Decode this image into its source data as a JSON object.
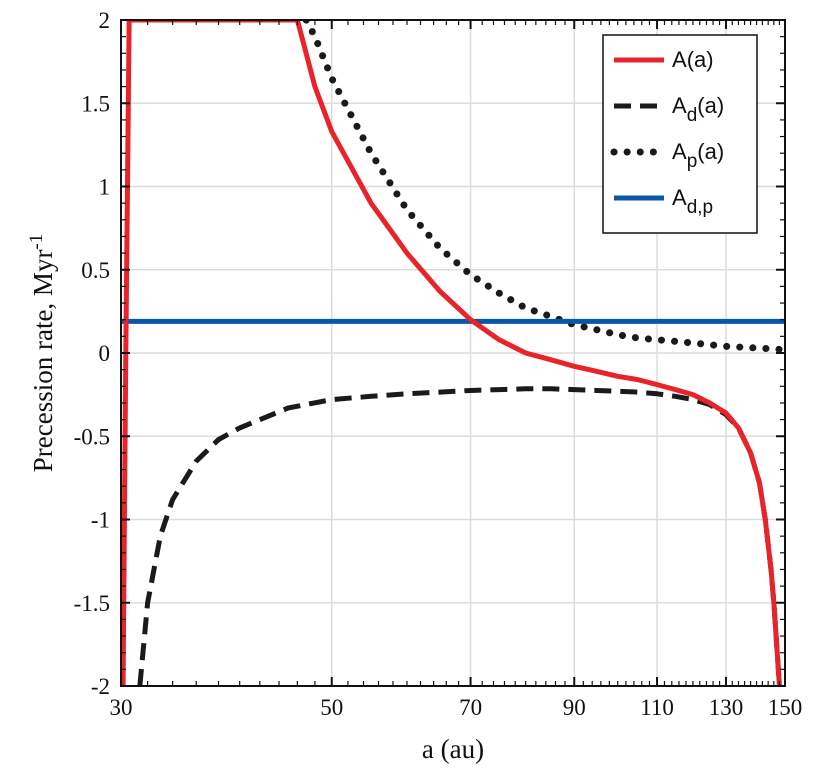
{
  "chart_data": {
    "type": "line",
    "xlabel": "a (au)",
    "ylabel": "Precession rate, Myr",
    "ylabel_superscript": "-1",
    "xscale": "log",
    "xlim": [
      30,
      150
    ],
    "ylim": [
      -2,
      2
    ],
    "xticks": [
      30,
      50,
      70,
      90,
      110,
      130,
      150
    ],
    "xtick_labels": [
      "30",
      "50",
      "70",
      "90",
      "110",
      "130",
      "150"
    ],
    "yticks": [
      -2,
      -1.5,
      -1,
      -0.5,
      0,
      0.5,
      1,
      1.5,
      2
    ],
    "ytick_labels": [
      "-2",
      "-1.5",
      "-1",
      "-0.5",
      "0",
      "0.5",
      "1",
      "1.5",
      "2"
    ],
    "grid": true,
    "legend_position": "top-right",
    "series": [
      {
        "name": "A(a)",
        "legend_base": "A",
        "legend_sub": "",
        "legend_suffix": "(a)",
        "color": "#e8232a",
        "style": "solid",
        "x": [
          30.15,
          30.35,
          30.6,
          46,
          48,
          50,
          55,
          60,
          65,
          70,
          75,
          80,
          85,
          90,
          95,
          100,
          105,
          110,
          115,
          120,
          125,
          130,
          134,
          138,
          141,
          143,
          145,
          146,
          147,
          148
        ],
        "y": [
          -2,
          0,
          2,
          2,
          1.6,
          1.33,
          0.9,
          0.6,
          0.37,
          0.2,
          0.08,
          0.0,
          -0.04,
          -0.08,
          -0.11,
          -0.14,
          -0.16,
          -0.19,
          -0.22,
          -0.25,
          -0.3,
          -0.36,
          -0.45,
          -0.6,
          -0.78,
          -1.0,
          -1.3,
          -1.5,
          -1.75,
          -2
        ]
      },
      {
        "name": "A_d(a)",
        "legend_base": "A",
        "legend_sub": "d",
        "legend_suffix": "(a)",
        "color": "#1a1a1a",
        "style": "dashed",
        "x": [
          31.4,
          32,
          33,
          34,
          36,
          38,
          40,
          45,
          50,
          55,
          60,
          65,
          70,
          75,
          80,
          85,
          90,
          95,
          100,
          105,
          110,
          115,
          120,
          125,
          130,
          134,
          138,
          141,
          143,
          145,
          146,
          147,
          148
        ],
        "y": [
          -2,
          -1.5,
          -1.1,
          -0.88,
          -0.65,
          -0.52,
          -0.45,
          -0.33,
          -0.28,
          -0.26,
          -0.245,
          -0.235,
          -0.225,
          -0.22,
          -0.215,
          -0.215,
          -0.22,
          -0.225,
          -0.23,
          -0.235,
          -0.245,
          -0.26,
          -0.28,
          -0.31,
          -0.37,
          -0.45,
          -0.6,
          -0.78,
          -1.0,
          -1.3,
          -1.5,
          -1.75,
          -2
        ]
      },
      {
        "name": "A_p(a)",
        "legend_base": "A",
        "legend_sub": "p",
        "legend_suffix": "(a)",
        "color": "#1a1a1a",
        "style": "dotted",
        "x": [
          47,
          48,
          50,
          55,
          60,
          65,
          70,
          75,
          80,
          85,
          90,
          95,
          100,
          105,
          110,
          115,
          120,
          125,
          130,
          135,
          140,
          145,
          150
        ],
        "y": [
          2,
          1.9,
          1.65,
          1.2,
          0.86,
          0.63,
          0.47,
          0.36,
          0.27,
          0.22,
          0.17,
          0.14,
          0.11,
          0.09,
          0.08,
          0.07,
          0.06,
          0.05,
          0.04,
          0.035,
          0.03,
          0.025,
          0.02
        ]
      },
      {
        "name": "A_{d,p}",
        "legend_base": "A",
        "legend_sub": "d,p",
        "legend_suffix": "",
        "color": "#0a56a8",
        "style": "solid",
        "x": [
          30,
          150
        ],
        "y": [
          0.19,
          0.19
        ]
      }
    ]
  }
}
